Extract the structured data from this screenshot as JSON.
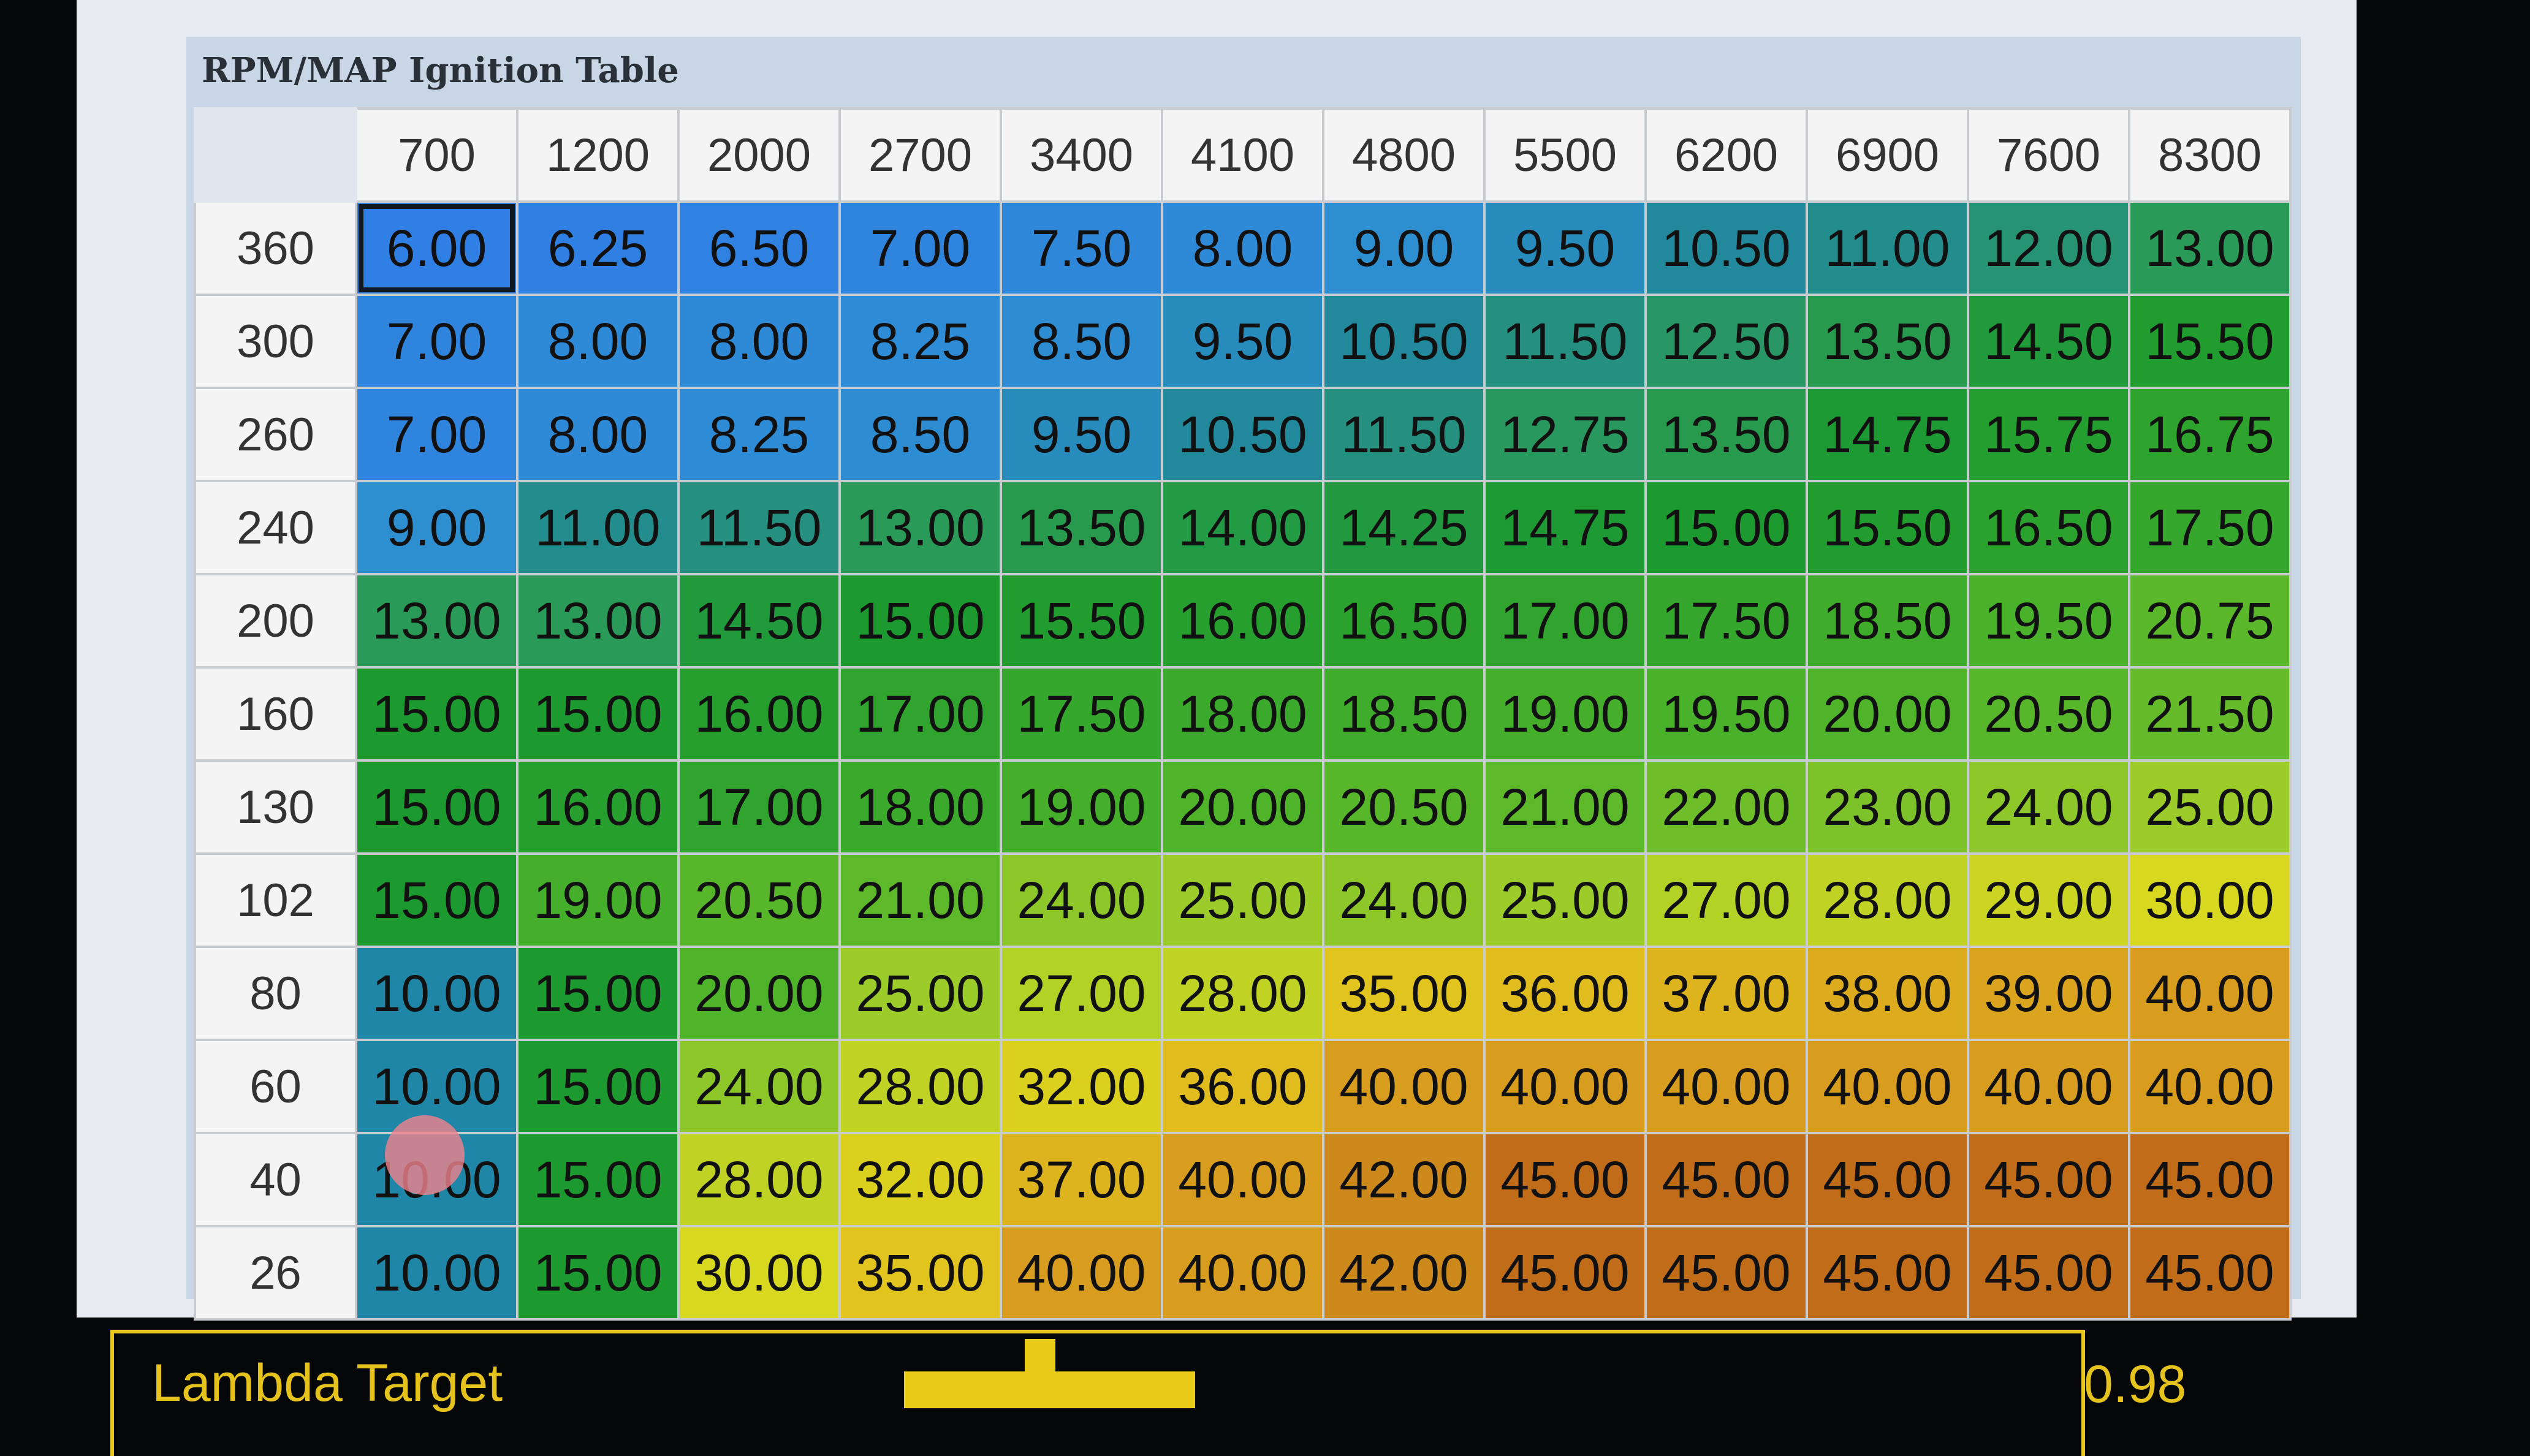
{
  "table": {
    "title": "RPM/MAP Ignition Table",
    "rpm": [
      "700",
      "1200",
      "2000",
      "2700",
      "3400",
      "4100",
      "4800",
      "5500",
      "6200",
      "6900",
      "7600",
      "8300"
    ],
    "selected_cell": {
      "map": "360",
      "rpm": "700"
    },
    "rows": [
      {
        "map": "360",
        "values": [
          "6.00",
          "6.25",
          "6.50",
          "7.00",
          "7.50",
          "8.00",
          "9.00",
          "9.50",
          "10.50",
          "11.00",
          "12.00",
          "13.00"
        ]
      },
      {
        "map": "300",
        "values": [
          "7.00",
          "8.00",
          "8.00",
          "8.25",
          "8.50",
          "9.50",
          "10.50",
          "11.50",
          "12.50",
          "13.50",
          "14.50",
          "15.50"
        ]
      },
      {
        "map": "260",
        "values": [
          "7.00",
          "8.00",
          "8.25",
          "8.50",
          "9.50",
          "10.50",
          "11.50",
          "12.75",
          "13.50",
          "14.75",
          "15.75",
          "16.75"
        ]
      },
      {
        "map": "240",
        "values": [
          "9.00",
          "11.00",
          "11.50",
          "13.00",
          "13.50",
          "14.00",
          "14.25",
          "14.75",
          "15.00",
          "15.50",
          "16.50",
          "17.50"
        ]
      },
      {
        "map": "200",
        "values": [
          "13.00",
          "13.00",
          "14.50",
          "15.00",
          "15.50",
          "16.00",
          "16.50",
          "17.00",
          "17.50",
          "18.50",
          "19.50",
          "20.75"
        ]
      },
      {
        "map": "160",
        "values": [
          "15.00",
          "15.00",
          "16.00",
          "17.00",
          "17.50",
          "18.00",
          "18.50",
          "19.00",
          "19.50",
          "20.00",
          "20.50",
          "21.50"
        ]
      },
      {
        "map": "130",
        "values": [
          "15.00",
          "16.00",
          "17.00",
          "18.00",
          "19.00",
          "20.00",
          "20.50",
          "21.00",
          "22.00",
          "23.00",
          "24.00",
          "25.00"
        ]
      },
      {
        "map": "102",
        "values": [
          "15.00",
          "19.00",
          "20.50",
          "21.00",
          "24.00",
          "25.00",
          "24.00",
          "25.00",
          "27.00",
          "28.00",
          "29.00",
          "30.00"
        ]
      },
      {
        "map": "80",
        "values": [
          "10.00",
          "15.00",
          "20.00",
          "25.00",
          "27.00",
          "28.00",
          "35.00",
          "36.00",
          "37.00",
          "38.00",
          "39.00",
          "40.00"
        ]
      },
      {
        "map": "60",
        "values": [
          "10.00",
          "15.00",
          "24.00",
          "28.00",
          "32.00",
          "36.00",
          "40.00",
          "40.00",
          "40.00",
          "40.00",
          "40.00",
          "40.00"
        ]
      },
      {
        "map": "40",
        "values": [
          "10.00",
          "15.00",
          "28.00",
          "32.00",
          "37.00",
          "40.00",
          "42.00",
          "45.00",
          "45.00",
          "45.00",
          "45.00",
          "45.00"
        ]
      },
      {
        "map": "26",
        "values": [
          "10.00",
          "15.00",
          "30.00",
          "35.00",
          "40.00",
          "40.00",
          "42.00",
          "45.00",
          "45.00",
          "45.00",
          "45.00",
          "45.00"
        ]
      }
    ],
    "color_scale": [
      {
        "at": 6,
        "color": "#2f7fe4"
      },
      {
        "at": 9,
        "color": "#2e8fd0"
      },
      {
        "at": 10,
        "color": "#1f86a8"
      },
      {
        "at": 13,
        "color": "#2a9a58"
      },
      {
        "at": 15,
        "color": "#1c9a30"
      },
      {
        "at": 20,
        "color": "#4fb42a"
      },
      {
        "at": 25,
        "color": "#9ccc2a"
      },
      {
        "at": 30,
        "color": "#d8d820"
      },
      {
        "at": 35,
        "color": "#e2c41e"
      },
      {
        "at": 40,
        "color": "#d89c1e"
      },
      {
        "at": 45,
        "color": "#c06c18"
      }
    ]
  },
  "lambda": {
    "label": "Lambda Target",
    "value": "0.98",
    "accent": "#e6c21c"
  }
}
